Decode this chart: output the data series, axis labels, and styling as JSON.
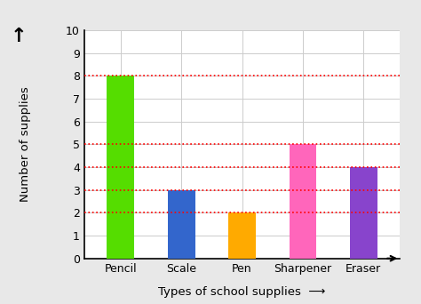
{
  "categories": [
    "Pencil",
    "Scale",
    "Pen",
    "Sharpener",
    "Eraser"
  ],
  "values": [
    8,
    3,
    2,
    5,
    4
  ],
  "bar_colors": [
    "#55dd00",
    "#3366cc",
    "#ffaa00",
    "#ff66bb",
    "#8844cc"
  ],
  "xlabel": "Types of school supplies",
  "ylabel": "Number of supplies",
  "ylim": [
    0,
    10
  ],
  "yticks": [
    0,
    1,
    2,
    3,
    4,
    5,
    6,
    7,
    8,
    9,
    10
  ],
  "dashed_lines": [
    2,
    3,
    4,
    5,
    8
  ],
  "plot_bg": "#ffffff",
  "fig_bg": "#e8e8e8",
  "grid_color": "#cccccc",
  "axis_label_fontsize": 9.5,
  "tick_fontsize": 9
}
